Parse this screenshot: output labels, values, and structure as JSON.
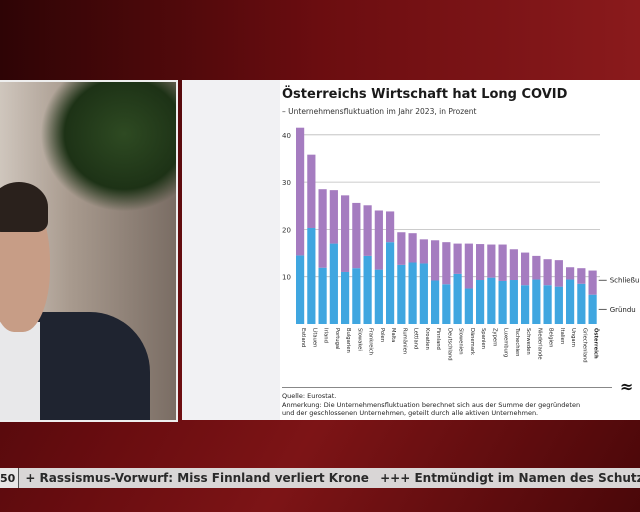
{
  "ticker": {
    "clock": "50",
    "items": [
      "+ Rassismus-Vorwurf: Miss Finnland verliert Krone",
      "+++ Entmündigt im Namen des Schutzes"
    ]
  },
  "logo": "≈",
  "chart_data": {
    "type": "bar",
    "stacked": true,
    "title": "Österreichs Wirtschaft hat Long COVID",
    "subtitle": "– Unternehmensfluktuation im Jahr 2023, in Prozent",
    "xlabel": "",
    "ylabel": "",
    "ylim": [
      0,
      42
    ],
    "yticks": [
      "10",
      "20",
      "30",
      "40"
    ],
    "grid": true,
    "legend_position": "right",
    "categories": [
      "Estland",
      "Litauen",
      "Irland",
      "Portugal",
      "Bulgarien",
      "Slowakei",
      "Frankreich",
      "Polen",
      "Malta",
      "Rumänien",
      "Lettland",
      "Kroatien",
      "Finnland",
      "Deutschland",
      "Slowenien",
      "Dänemark",
      "Spanien",
      "Zypern",
      "Luxemburg",
      "Tschechien",
      "Schweden",
      "Niederlande",
      "Belgien",
      "Italien",
      "Ungarn",
      "Griechenland",
      "Österreich"
    ],
    "series": [
      {
        "name": "Gründu",
        "color": "#3fa6e0",
        "values": [
          14.5,
          20.3,
          11.9,
          17.0,
          11.0,
          11.8,
          14.4,
          11.5,
          17.3,
          12.5,
          13.0,
          12.8,
          9.2,
          8.4,
          10.6,
          7.5,
          9.3,
          9.8,
          9.1,
          9.3,
          8.2,
          9.4,
          8.2,
          7.9,
          9.4,
          8.5,
          6.2
        ]
      },
      {
        "name": "Schließu",
        "color": "#a57cc0",
        "values": [
          27.0,
          15.5,
          16.6,
          11.3,
          16.2,
          13.8,
          10.7,
          12.5,
          6.5,
          6.9,
          6.2,
          5.1,
          8.5,
          8.9,
          6.4,
          9.5,
          7.6,
          7.0,
          7.7,
          6.5,
          6.9,
          5.0,
          5.5,
          5.6,
          2.6,
          3.3,
          5.1
        ]
      }
    ],
    "source": "Quelle: Eurostat.",
    "note_lines": [
      "Anmerkung: Die Unternehmensfluktuation berechnet sich aus der Summe der gegründeten",
      "und der geschlossenen Unternehmen, geteilt durch alle aktiven Unternehmen."
    ]
  }
}
